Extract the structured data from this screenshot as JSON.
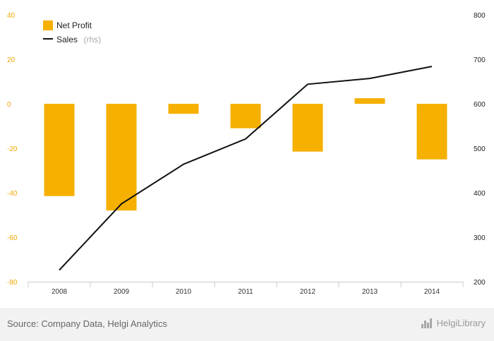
{
  "chart_data": {
    "type": "bar+line",
    "categories": [
      "2008",
      "2009",
      "2010",
      "2011",
      "2012",
      "2013",
      "2014"
    ],
    "series": [
      {
        "name": "Net Profit",
        "type": "bar",
        "axis": "left",
        "values": [
          -41.5,
          -48,
          -4.5,
          -11,
          -21.5,
          2.5,
          -25
        ]
      },
      {
        "name": "Sales",
        "name_suffix": "(rhs)",
        "type": "line",
        "axis": "right",
        "values": [
          226,
          375,
          464,
          521,
          644,
          657,
          684
        ]
      }
    ],
    "left_axis": {
      "min": -80,
      "max": 40,
      "ticks": [
        "40",
        "20",
        "0",
        "-20",
        "-40",
        "-60",
        "-80"
      ]
    },
    "right_axis": {
      "min": 200,
      "max": 800,
      "ticks": [
        "800",
        "700",
        "600",
        "500",
        "400",
        "300",
        "200"
      ]
    },
    "legend_position": "top-left",
    "colors": {
      "bar": "#f5b000",
      "line": "#111111",
      "left_ticks": "#f0a800"
    }
  },
  "footer": {
    "source": "Source: Company Data, Helgi Analytics",
    "logo_text": "HelgiLibrary"
  }
}
